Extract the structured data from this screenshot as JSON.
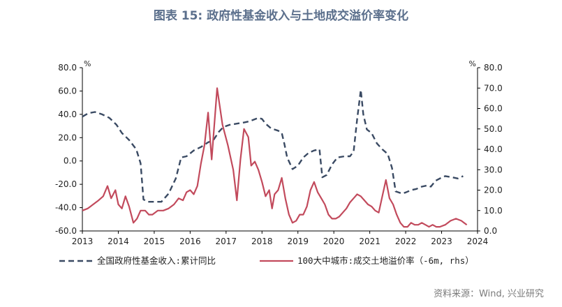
{
  "title": "图表 15: 政府性基金收入与土地成交溢价率变化",
  "source": "资料来源：Wind, 兴业研究",
  "chart_data": {
    "type": "line",
    "x_ticks": [
      "2013",
      "2014",
      "2015",
      "2016",
      "2017",
      "2018",
      "2019",
      "2020",
      "2021",
      "2022",
      "2023",
      "2024"
    ],
    "x_range": [
      2013.0,
      2024.0
    ],
    "y_left": {
      "unit": "%",
      "range": [
        -60,
        80
      ],
      "ticks": [
        "80.0",
        "60.0",
        "40.0",
        "20.0",
        "0.0",
        "-20.0",
        "-40.0",
        "-60.0"
      ]
    },
    "y_right": {
      "unit": "%",
      "range": [
        0,
        80
      ],
      "ticks": [
        "80.0",
        "70.0",
        "60.0",
        "50.0",
        "40.0",
        "30.0",
        "20.0",
        "10.0",
        "0.0"
      ]
    },
    "grid": false,
    "legend_position": "bottom",
    "series": [
      {
        "name": "全国政府性基金收入:累计同比",
        "axis": "left",
        "style": "dashed",
        "color": "#3a4a63",
        "points": [
          [
            2013.0,
            38
          ],
          [
            2013.17,
            41
          ],
          [
            2013.35,
            42
          ],
          [
            2013.55,
            40
          ],
          [
            2013.75,
            37
          ],
          [
            2013.95,
            31
          ],
          [
            2014.1,
            24
          ],
          [
            2014.3,
            18
          ],
          [
            2014.5,
            10
          ],
          [
            2014.62,
            -2
          ],
          [
            2014.7,
            -33
          ],
          [
            2014.83,
            -35
          ],
          [
            2015.0,
            -35
          ],
          [
            2015.2,
            -35
          ],
          [
            2015.4,
            -28
          ],
          [
            2015.6,
            -15
          ],
          [
            2015.75,
            3
          ],
          [
            2015.9,
            4
          ],
          [
            2016.1,
            9
          ],
          [
            2016.3,
            12
          ],
          [
            2016.5,
            16
          ],
          [
            2016.65,
            18
          ],
          [
            2016.8,
            25
          ],
          [
            2016.92,
            29
          ],
          [
            2017.1,
            31
          ],
          [
            2017.3,
            32
          ],
          [
            2017.5,
            33
          ],
          [
            2017.65,
            34
          ],
          [
            2017.9,
            37
          ],
          [
            2018.0,
            36
          ],
          [
            2018.1,
            32
          ],
          [
            2018.25,
            28
          ],
          [
            2018.45,
            26
          ],
          [
            2018.55,
            24
          ],
          [
            2018.62,
            15
          ],
          [
            2018.7,
            3
          ],
          [
            2018.85,
            -7
          ],
          [
            2019.0,
            -4
          ],
          [
            2019.15,
            3
          ],
          [
            2019.3,
            7
          ],
          [
            2019.45,
            9
          ],
          [
            2019.6,
            10
          ],
          [
            2019.68,
            -14
          ],
          [
            2019.8,
            -12
          ],
          [
            2019.95,
            -3
          ],
          [
            2020.1,
            3
          ],
          [
            2020.3,
            4
          ],
          [
            2020.45,
            4
          ],
          [
            2020.55,
            8
          ],
          [
            2020.65,
            36
          ],
          [
            2020.75,
            61
          ],
          [
            2020.82,
            40
          ],
          [
            2020.92,
            27
          ],
          [
            2021.05,
            24
          ],
          [
            2021.2,
            15
          ],
          [
            2021.35,
            10
          ],
          [
            2021.5,
            6
          ],
          [
            2021.62,
            -6
          ],
          [
            2021.72,
            -26
          ],
          [
            2021.9,
            -28
          ],
          [
            2022.0,
            -27
          ],
          [
            2022.15,
            -25
          ],
          [
            2022.3,
            -24
          ],
          [
            2022.45,
            -22
          ],
          [
            2022.6,
            -21
          ],
          [
            2022.7,
            -22
          ],
          [
            2022.83,
            -17
          ],
          [
            2022.95,
            -15
          ],
          [
            2023.1,
            -13
          ],
          [
            2023.3,
            -14
          ],
          [
            2023.45,
            -15
          ],
          [
            2023.6,
            -13
          ]
        ]
      },
      {
        "name": "100大中城市:成交土地溢价率（-6m, rhs）",
        "axis": "right",
        "style": "solid",
        "color": "#c24a5c",
        "points": [
          [
            2013.0,
            10
          ],
          [
            2013.15,
            11
          ],
          [
            2013.3,
            13
          ],
          [
            2013.45,
            15
          ],
          [
            2013.58,
            17
          ],
          [
            2013.7,
            22
          ],
          [
            2013.8,
            16
          ],
          [
            2013.92,
            20
          ],
          [
            2014.0,
            13
          ],
          [
            2014.1,
            11
          ],
          [
            2014.2,
            17
          ],
          [
            2014.3,
            12
          ],
          [
            2014.42,
            4
          ],
          [
            2014.52,
            6
          ],
          [
            2014.62,
            10
          ],
          [
            2014.75,
            10
          ],
          [
            2014.85,
            8
          ],
          [
            2014.95,
            8
          ],
          [
            2015.1,
            10
          ],
          [
            2015.25,
            10
          ],
          [
            2015.4,
            11
          ],
          [
            2015.55,
            13
          ],
          [
            2015.68,
            16
          ],
          [
            2015.8,
            15
          ],
          [
            2015.9,
            19
          ],
          [
            2016.0,
            20
          ],
          [
            2016.1,
            18
          ],
          [
            2016.2,
            22
          ],
          [
            2016.3,
            33
          ],
          [
            2016.4,
            42
          ],
          [
            2016.5,
            58
          ],
          [
            2016.6,
            35
          ],
          [
            2016.75,
            70
          ],
          [
            2016.9,
            52
          ],
          [
            2017.05,
            42
          ],
          [
            2017.2,
            30
          ],
          [
            2017.3,
            15
          ],
          [
            2017.4,
            35
          ],
          [
            2017.5,
            50
          ],
          [
            2017.62,
            46
          ],
          [
            2017.7,
            32
          ],
          [
            2017.8,
            34
          ],
          [
            2017.9,
            30
          ],
          [
            2018.0,
            24
          ],
          [
            2018.1,
            17
          ],
          [
            2018.2,
            20
          ],
          [
            2018.28,
            11
          ],
          [
            2018.35,
            18
          ],
          [
            2018.45,
            20
          ],
          [
            2018.55,
            26
          ],
          [
            2018.65,
            16
          ],
          [
            2018.75,
            8
          ],
          [
            2018.85,
            4
          ],
          [
            2018.95,
            5
          ],
          [
            2019.05,
            8
          ],
          [
            2019.15,
            8
          ],
          [
            2019.25,
            12
          ],
          [
            2019.35,
            20
          ],
          [
            2019.45,
            24
          ],
          [
            2019.55,
            19
          ],
          [
            2019.65,
            16
          ],
          [
            2019.75,
            13
          ],
          [
            2019.85,
            8
          ],
          [
            2019.95,
            6
          ],
          [
            2020.05,
            6
          ],
          [
            2020.15,
            7
          ],
          [
            2020.25,
            9
          ],
          [
            2020.35,
            11
          ],
          [
            2020.45,
            14
          ],
          [
            2020.55,
            16
          ],
          [
            2020.65,
            18
          ],
          [
            2020.75,
            17
          ],
          [
            2020.85,
            15
          ],
          [
            2020.95,
            13
          ],
          [
            2021.05,
            12
          ],
          [
            2021.15,
            10
          ],
          [
            2021.25,
            9
          ],
          [
            2021.35,
            17
          ],
          [
            2021.45,
            25
          ],
          [
            2021.55,
            16
          ],
          [
            2021.65,
            13
          ],
          [
            2021.75,
            8
          ],
          [
            2021.85,
            4
          ],
          [
            2021.95,
            2
          ],
          [
            2022.05,
            2
          ],
          [
            2022.15,
            4
          ],
          [
            2022.25,
            3
          ],
          [
            2022.35,
            3
          ],
          [
            2022.45,
            4
          ],
          [
            2022.55,
            3
          ],
          [
            2022.65,
            2
          ],
          [
            2022.75,
            3
          ],
          [
            2022.85,
            2
          ],
          [
            2022.95,
            2
          ],
          [
            2023.1,
            3
          ],
          [
            2023.25,
            5
          ],
          [
            2023.4,
            6
          ],
          [
            2023.55,
            5
          ],
          [
            2023.7,
            3
          ]
        ]
      }
    ]
  }
}
